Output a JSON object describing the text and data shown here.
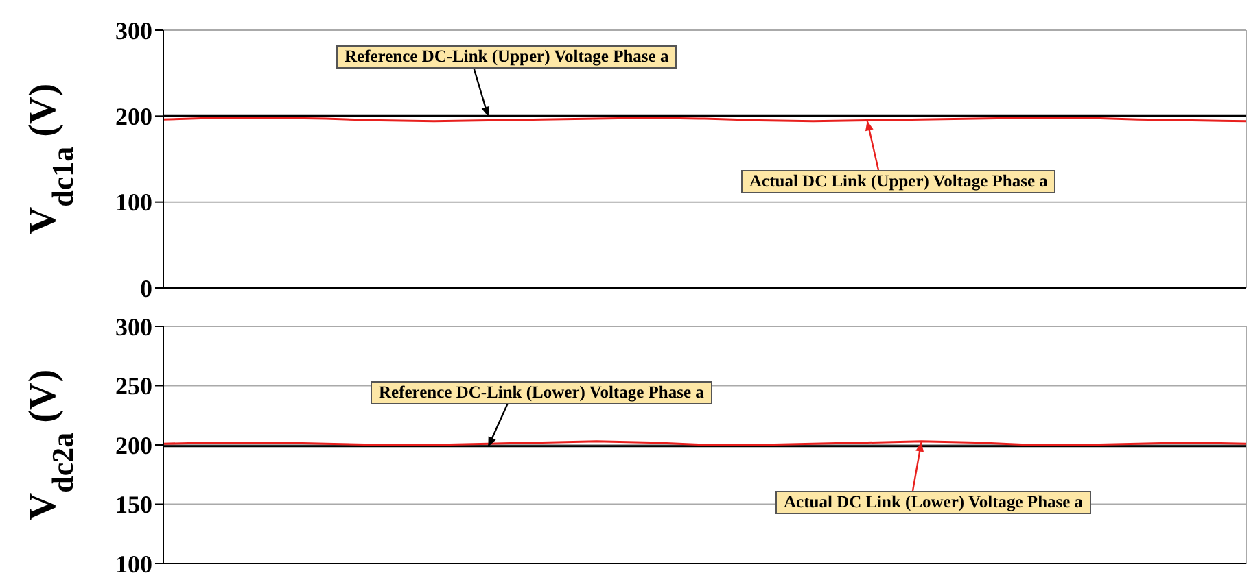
{
  "chart_data": [
    {
      "type": "line",
      "ylabel": "V$_{dc1a}$ (V)",
      "categories": [
        null,
        null,
        null,
        null,
        null,
        null,
        null,
        null,
        null,
        null,
        null,
        null,
        null,
        null,
        null,
        null,
        null,
        null,
        null,
        null,
        null
      ],
      "ylim": [
        0,
        300
      ],
      "yticks": [
        0,
        100,
        200,
        300
      ],
      "grid": true,
      "legend": false,
      "marker": "none",
      "line_style": "solid",
      "series": [
        {
          "name": "Reference DC-Link (Upper) Voltage Phase a",
          "color": "#000000",
          "values": [
            200,
            200,
            200,
            200,
            200,
            200,
            200,
            200,
            200,
            200,
            200,
            200,
            200,
            200,
            200,
            200,
            200,
            200,
            200,
            200,
            200
          ]
        },
        {
          "name": "Actual DC Link (Upper) Voltage Phase a",
          "color": "#e8201e",
          "values": [
            196,
            198,
            198,
            197,
            195,
            194,
            195,
            196,
            197,
            198,
            197,
            195,
            194,
            195,
            196,
            197,
            198,
            198,
            196,
            195,
            194
          ]
        }
      ]
    },
    {
      "type": "line",
      "ylabel": "V$_{dc2a}$ (V)",
      "categories": [
        null,
        null,
        null,
        null,
        null,
        null,
        null,
        null,
        null,
        null,
        null,
        null,
        null,
        null,
        null,
        null,
        null,
        null,
        null,
        null,
        null
      ],
      "ylim": [
        100,
        300
      ],
      "yticks": [
        100,
        150,
        200,
        250,
        300
      ],
      "grid": true,
      "legend": false,
      "marker": "none",
      "line_style": "solid",
      "series": [
        {
          "name": "Reference DC-Link (Lower) Voltage Phase a",
          "color": "#000000",
          "values": [
            199,
            199,
            199,
            199,
            199,
            199,
            199,
            199,
            199,
            199,
            199,
            199,
            199,
            199,
            199,
            199,
            199,
            199,
            199,
            199,
            199
          ]
        },
        {
          "name": "Actual DC Link (Lower) Voltage Phase a",
          "color": "#e8201e",
          "values": [
            201,
            202,
            202,
            201,
            200,
            200,
            201,
            202,
            203,
            202,
            200,
            200,
            201,
            202,
            203,
            202,
            200,
            200,
            201,
            202,
            201
          ]
        }
      ]
    }
  ]
}
